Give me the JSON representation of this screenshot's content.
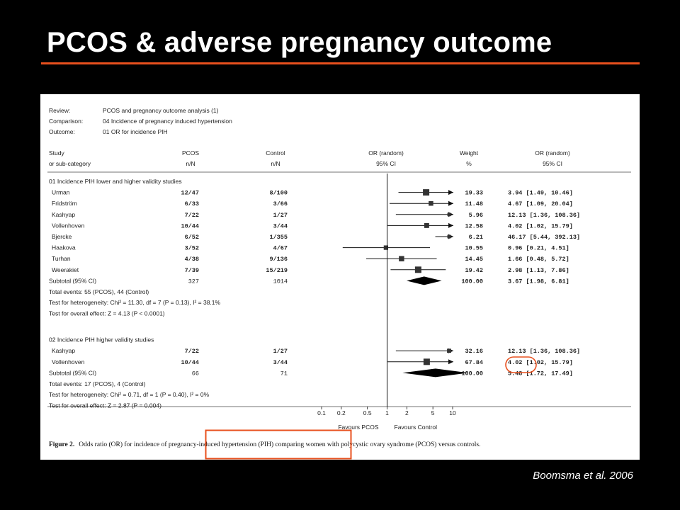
{
  "slide": {
    "title": "PCOS & adverse pregnancy outcome",
    "citation": "Boomsma et al. 2006"
  },
  "colors": {
    "accent": "#e8501e",
    "background": "#000000"
  },
  "meta": {
    "review_label": "Review:",
    "review_value": "PCOS and pregnancy outcome analysis (1)",
    "comparison_label": "Comparison:",
    "comparison_value": "04 Incidence of pregnancy induced hypertension",
    "outcome_label": "Outcome:",
    "outcome_value": "01 OR for incidence PIH"
  },
  "headers": {
    "study": [
      "Study",
      "or sub-category"
    ],
    "pcos": [
      "PCOS",
      "n/N"
    ],
    "control": [
      "Control",
      "n/N"
    ],
    "or_plot": [
      "OR (random)",
      "95% CI"
    ],
    "weight": [
      "Weight",
      "%"
    ],
    "or_text": [
      "OR (random)",
      "95% CI"
    ]
  },
  "chart_data": {
    "type": "forest",
    "scale": "log",
    "x_ticks": [
      0.1,
      0.2,
      0.5,
      1,
      2,
      5,
      10
    ],
    "x_tick_labels": [
      "0.1",
      "0.2",
      "0.5",
      "1",
      "2",
      "5",
      "10"
    ],
    "xlabel_left": "Favours PCOS",
    "xlabel_right": "Favours Control",
    "groups": [
      {
        "label": "01 Incidence PIH lower and higher validity studies",
        "studies": [
          {
            "name": "Urman",
            "pcos": "12/47",
            "control": "8/100",
            "or": 3.94,
            "lo": 1.49,
            "hi": 10.46,
            "weight": "19.33",
            "ci_text": "3.94 [1.49, 10.46]"
          },
          {
            "name": "Fridström",
            "pcos": "6/33",
            "control": "3/66",
            "or": 4.67,
            "lo": 1.09,
            "hi": 20.04,
            "weight": "11.48",
            "ci_text": "4.67 [1.09, 20.04]"
          },
          {
            "name": "Kashyap",
            "pcos": "7/22",
            "control": "1/27",
            "or": 12.13,
            "lo": 1.36,
            "hi": 108.36,
            "weight": "5.96",
            "ci_text": "12.13 [1.36, 108.36]"
          },
          {
            "name": "Vollenhoven",
            "pcos": "10/44",
            "control": "3/44",
            "or": 4.02,
            "lo": 1.02,
            "hi": 15.79,
            "weight": "12.58",
            "ci_text": "4.02 [1.02, 15.79]"
          },
          {
            "name": "Bjercke",
            "pcos": "6/52",
            "control": "1/355",
            "or": 46.17,
            "lo": 5.44,
            "hi": 392.13,
            "weight": "6.21",
            "ci_text": "46.17 [5.44, 392.13]"
          },
          {
            "name": "Haakova",
            "pcos": "3/52",
            "control": "4/67",
            "or": 0.96,
            "lo": 0.21,
            "hi": 4.51,
            "weight": "10.55",
            "ci_text": "0.96 [0.21, 4.51]"
          },
          {
            "name": "Turhan",
            "pcos": "4/38",
            "control": "9/136",
            "or": 1.66,
            "lo": 0.48,
            "hi": 5.72,
            "weight": "14.45",
            "ci_text": "1.66 [0.48, 5.72]"
          },
          {
            "name": "Weerakiet",
            "pcos": "7/39",
            "control": "15/219",
            "or": 2.98,
            "lo": 1.13,
            "hi": 7.86,
            "weight": "19.42",
            "ci_text": "2.98 [1.13, 7.86]"
          }
        ],
        "subtotal": {
          "label": "Subtotal (95% CI)",
          "pcos": "327",
          "control": "1014",
          "or": 3.67,
          "lo": 1.98,
          "hi": 6.81,
          "weight": "100.00",
          "ci_text": "3.67 [1.98, 6.81]"
        },
        "notes": [
          "Total events: 55 (PCOS), 44 (Control)",
          "Test for heterogeneity: Chi² = 11.30, df = 7 (P = 0.13), I² = 38.1%",
          "Test for overall effect: Z = 4.13 (P < 0.0001)"
        ]
      },
      {
        "label": "02 Incidence PIH higher validity studies",
        "studies": [
          {
            "name": "Kashyap",
            "pcos": "7/22",
            "control": "1/27",
            "or": 12.13,
            "lo": 1.36,
            "hi": 108.36,
            "weight": "32.16",
            "ci_text": "12.13 [1.36, 108.36]"
          },
          {
            "name": "Vollenhoven",
            "pcos": "10/44",
            "control": "3/44",
            "or": 4.02,
            "lo": 1.02,
            "hi": 15.79,
            "weight": "67.84",
            "ci_text": "4.02 [1.02, 15.79]"
          }
        ],
        "subtotal": {
          "label": "Subtotal (95% CI)",
          "pcos": "66",
          "control": "71",
          "or": 5.48,
          "lo": 1.72,
          "hi": 17.49,
          "weight": "100.00",
          "ci_text": "5.48 [1.72, 17.49]"
        },
        "notes": [
          "Total events: 17 (PCOS), 4 (Control)",
          "Test for heterogeneity: Chi² = 0.71, df = 1 (P = 0.40), I² = 0%",
          "Test for overall effect: Z = 2.87 (P = 0.004)"
        ]
      }
    ]
  },
  "caption": {
    "lead": "Figure 2.",
    "text": "Odds ratio (OR) for incidence of pregnancy-induced hypertension (PIH) comparing women with polycystic ovary syndrome (PCOS) versus controls."
  }
}
